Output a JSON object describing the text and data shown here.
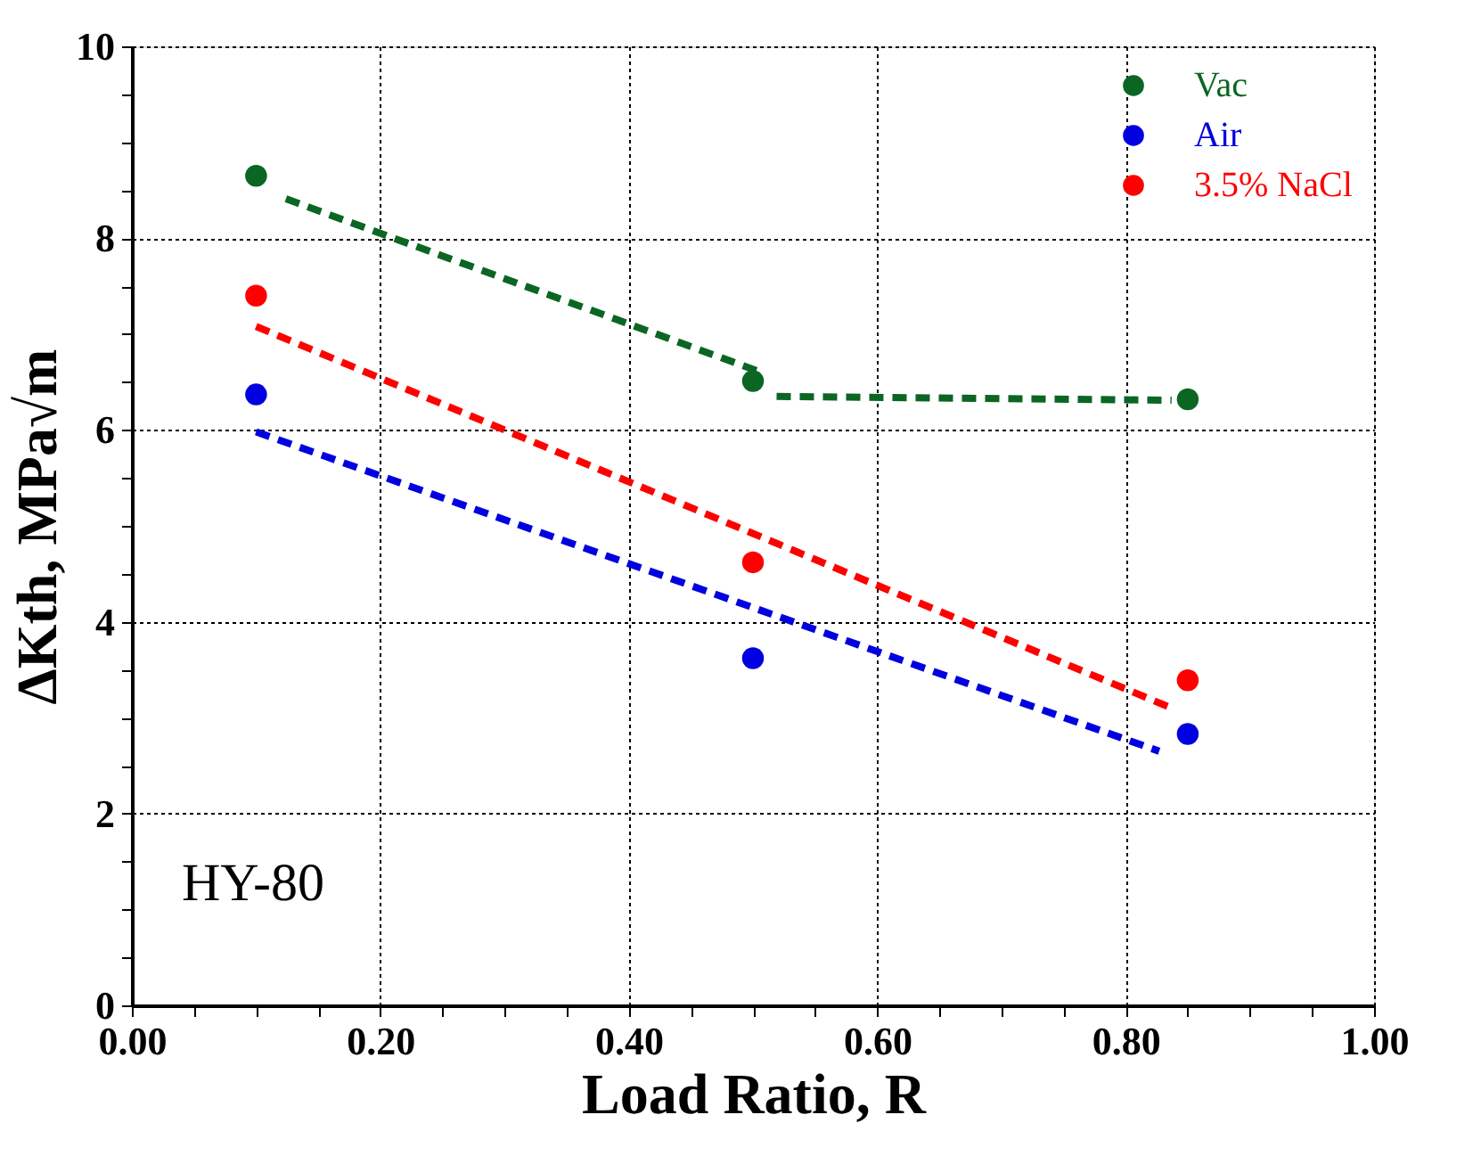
{
  "chart_data": {
    "type": "scatter",
    "xlabel": "Load Ratio, R",
    "ylabel": "ΔKth, MPa√m",
    "annotations": [
      "HY-80"
    ],
    "xlim": [
      0,
      1
    ],
    "ylim": [
      0,
      10
    ],
    "xticks": [
      {
        "value": 0,
        "label": "0.00"
      },
      {
        "value": 0.05,
        "label": null
      },
      {
        "value": 0.1,
        "label": null
      },
      {
        "value": 0.15,
        "label": null
      },
      {
        "value": 0.2,
        "label": "0.20"
      },
      {
        "value": 0.25,
        "label": null
      },
      {
        "value": 0.3,
        "label": null
      },
      {
        "value": 0.35,
        "label": null
      },
      {
        "value": 0.4,
        "label": "0.40"
      },
      {
        "value": 0.45,
        "label": null
      },
      {
        "value": 0.5,
        "label": null
      },
      {
        "value": 0.55,
        "label": null
      },
      {
        "value": 0.6,
        "label": "0.60"
      },
      {
        "value": 0.65,
        "label": null
      },
      {
        "value": 0.7,
        "label": null
      },
      {
        "value": 0.75,
        "label": null
      },
      {
        "value": 0.8,
        "label": "0.80"
      },
      {
        "value": 0.85,
        "label": null
      },
      {
        "value": 0.9,
        "label": null
      },
      {
        "value": 0.95,
        "label": null
      },
      {
        "value": 1,
        "label": "1.00"
      }
    ],
    "yticks": [
      0,
      {
        "value": 0.5,
        "label": null
      },
      {
        "value": 1,
        "label": null
      },
      {
        "value": 1.5,
        "label": null
      },
      2,
      {
        "value": 2.5,
        "label": null
      },
      {
        "value": 3,
        "label": null
      },
      {
        "value": 3.5,
        "label": null
      },
      4,
      {
        "value": 4.5,
        "label": null
      },
      {
        "value": 5,
        "label": null
      },
      {
        "value": 5.5,
        "label": null
      },
      6,
      {
        "value": 6.5,
        "label": null
      },
      {
        "value": 7,
        "label": null
      },
      {
        "value": 7.5,
        "label": null
      },
      8,
      {
        "value": 8.5,
        "label": null
      },
      {
        "value": 9,
        "label": null
      },
      {
        "value": 9.5,
        "label": null
      },
      10
    ],
    "grid": true,
    "legend": "top right",
    "marker": "circle",
    "series": [
      {
        "name": "Vac",
        "color": "#0b6623",
        "x": [
          0.1,
          0.5,
          0.85
        ],
        "values": [
          8.65,
          6.51,
          6.32
        ]
      },
      {
        "name": "Air",
        "color": "#0000e0",
        "x": [
          0.1,
          0.5,
          0.85
        ],
        "values": [
          6.37,
          3.62,
          2.83
        ]
      },
      {
        "name": "3.5% NaCl",
        "color": "#ff0000",
        "x": [
          0.1,
          0.5,
          0.85
        ],
        "values": [
          7.4,
          4.62,
          3.39
        ]
      },
      {
        "type": "line",
        "marker": "none",
        "line_style": "dashed",
        "color": "#0b6623",
        "x": [
          0.124,
          0.509
        ],
        "values": [
          8.41,
          6.59
        ]
      },
      {
        "type": "line",
        "marker": "none",
        "line_style": "dashed",
        "color": "#0b6623",
        "x": [
          0.519,
          0.837
        ],
        "values": [
          6.35,
          6.31
        ]
      },
      {
        "type": "line",
        "marker": "none",
        "line_style": "dashed",
        "color": "#ff0000",
        "x": [
          0.1,
          0.837
        ],
        "values": [
          7.08,
          3.1
        ]
      },
      {
        "type": "line",
        "marker": "none",
        "line_style": "dashed",
        "color": "#0000e0",
        "x": [
          0.1,
          0.827
        ],
        "values": [
          5.98,
          2.65
        ]
      }
    ]
  }
}
